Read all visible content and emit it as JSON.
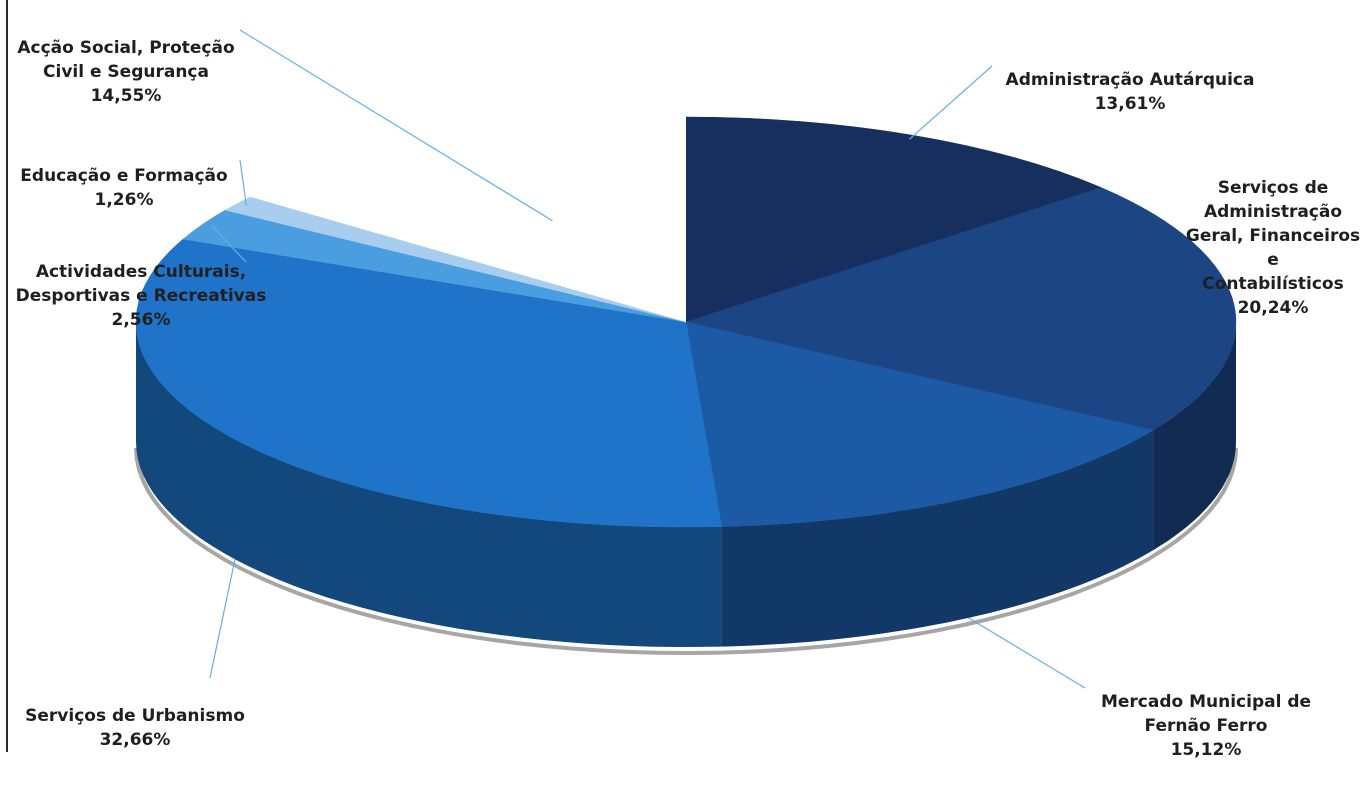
{
  "chart_data": {
    "type": "pie",
    "variant": "3d",
    "title": "",
    "series": [
      {
        "name": "Administração Autárquica",
        "label": "Administração Autárquica",
        "value": 13.61,
        "value_label": "13,61%",
        "color": "#162f5e"
      },
      {
        "name": "Serviços de Administração Geral, Financeiros e Contabilísticos",
        "label": "Serviços de\nAdministração\nGeral, Financeiros\ne\nContabilísticos",
        "value": 20.24,
        "value_label": "20,24%",
        "color": "#1c4584"
      },
      {
        "name": "Mercado Municipal de Fernão Ferro",
        "label": "Mercado Municipal de\nFernão Ferro",
        "value": 15.12,
        "value_label": "15,12%",
        "color": "#1c5aa6"
      },
      {
        "name": "Serviços de Urbanismo",
        "label": "Serviços de Urbanismo",
        "value": 32.66,
        "value_label": "32,66%",
        "color": "#1f74c9"
      },
      {
        "name": "Actividades Culturais, Desportivas e Recreativas",
        "label": "Actividades Culturais,\nDesportivas e Recreativas",
        "value": 2.56,
        "value_label": "2,56%",
        "color": "#4a9ee0"
      },
      {
        "name": "Educação e Formação",
        "label": "Educação e Formação",
        "value": 1.26,
        "value_label": "1,26%",
        "color": "#a9cdef"
      },
      {
        "name": "Acção Social, Proteção Civil e Segurança",
        "label": "Acção Social, Proteção\nCivil e Segurança",
        "value": 14.55,
        "value_label": "14,55%",
        "color": "#ffffff"
      }
    ]
  }
}
